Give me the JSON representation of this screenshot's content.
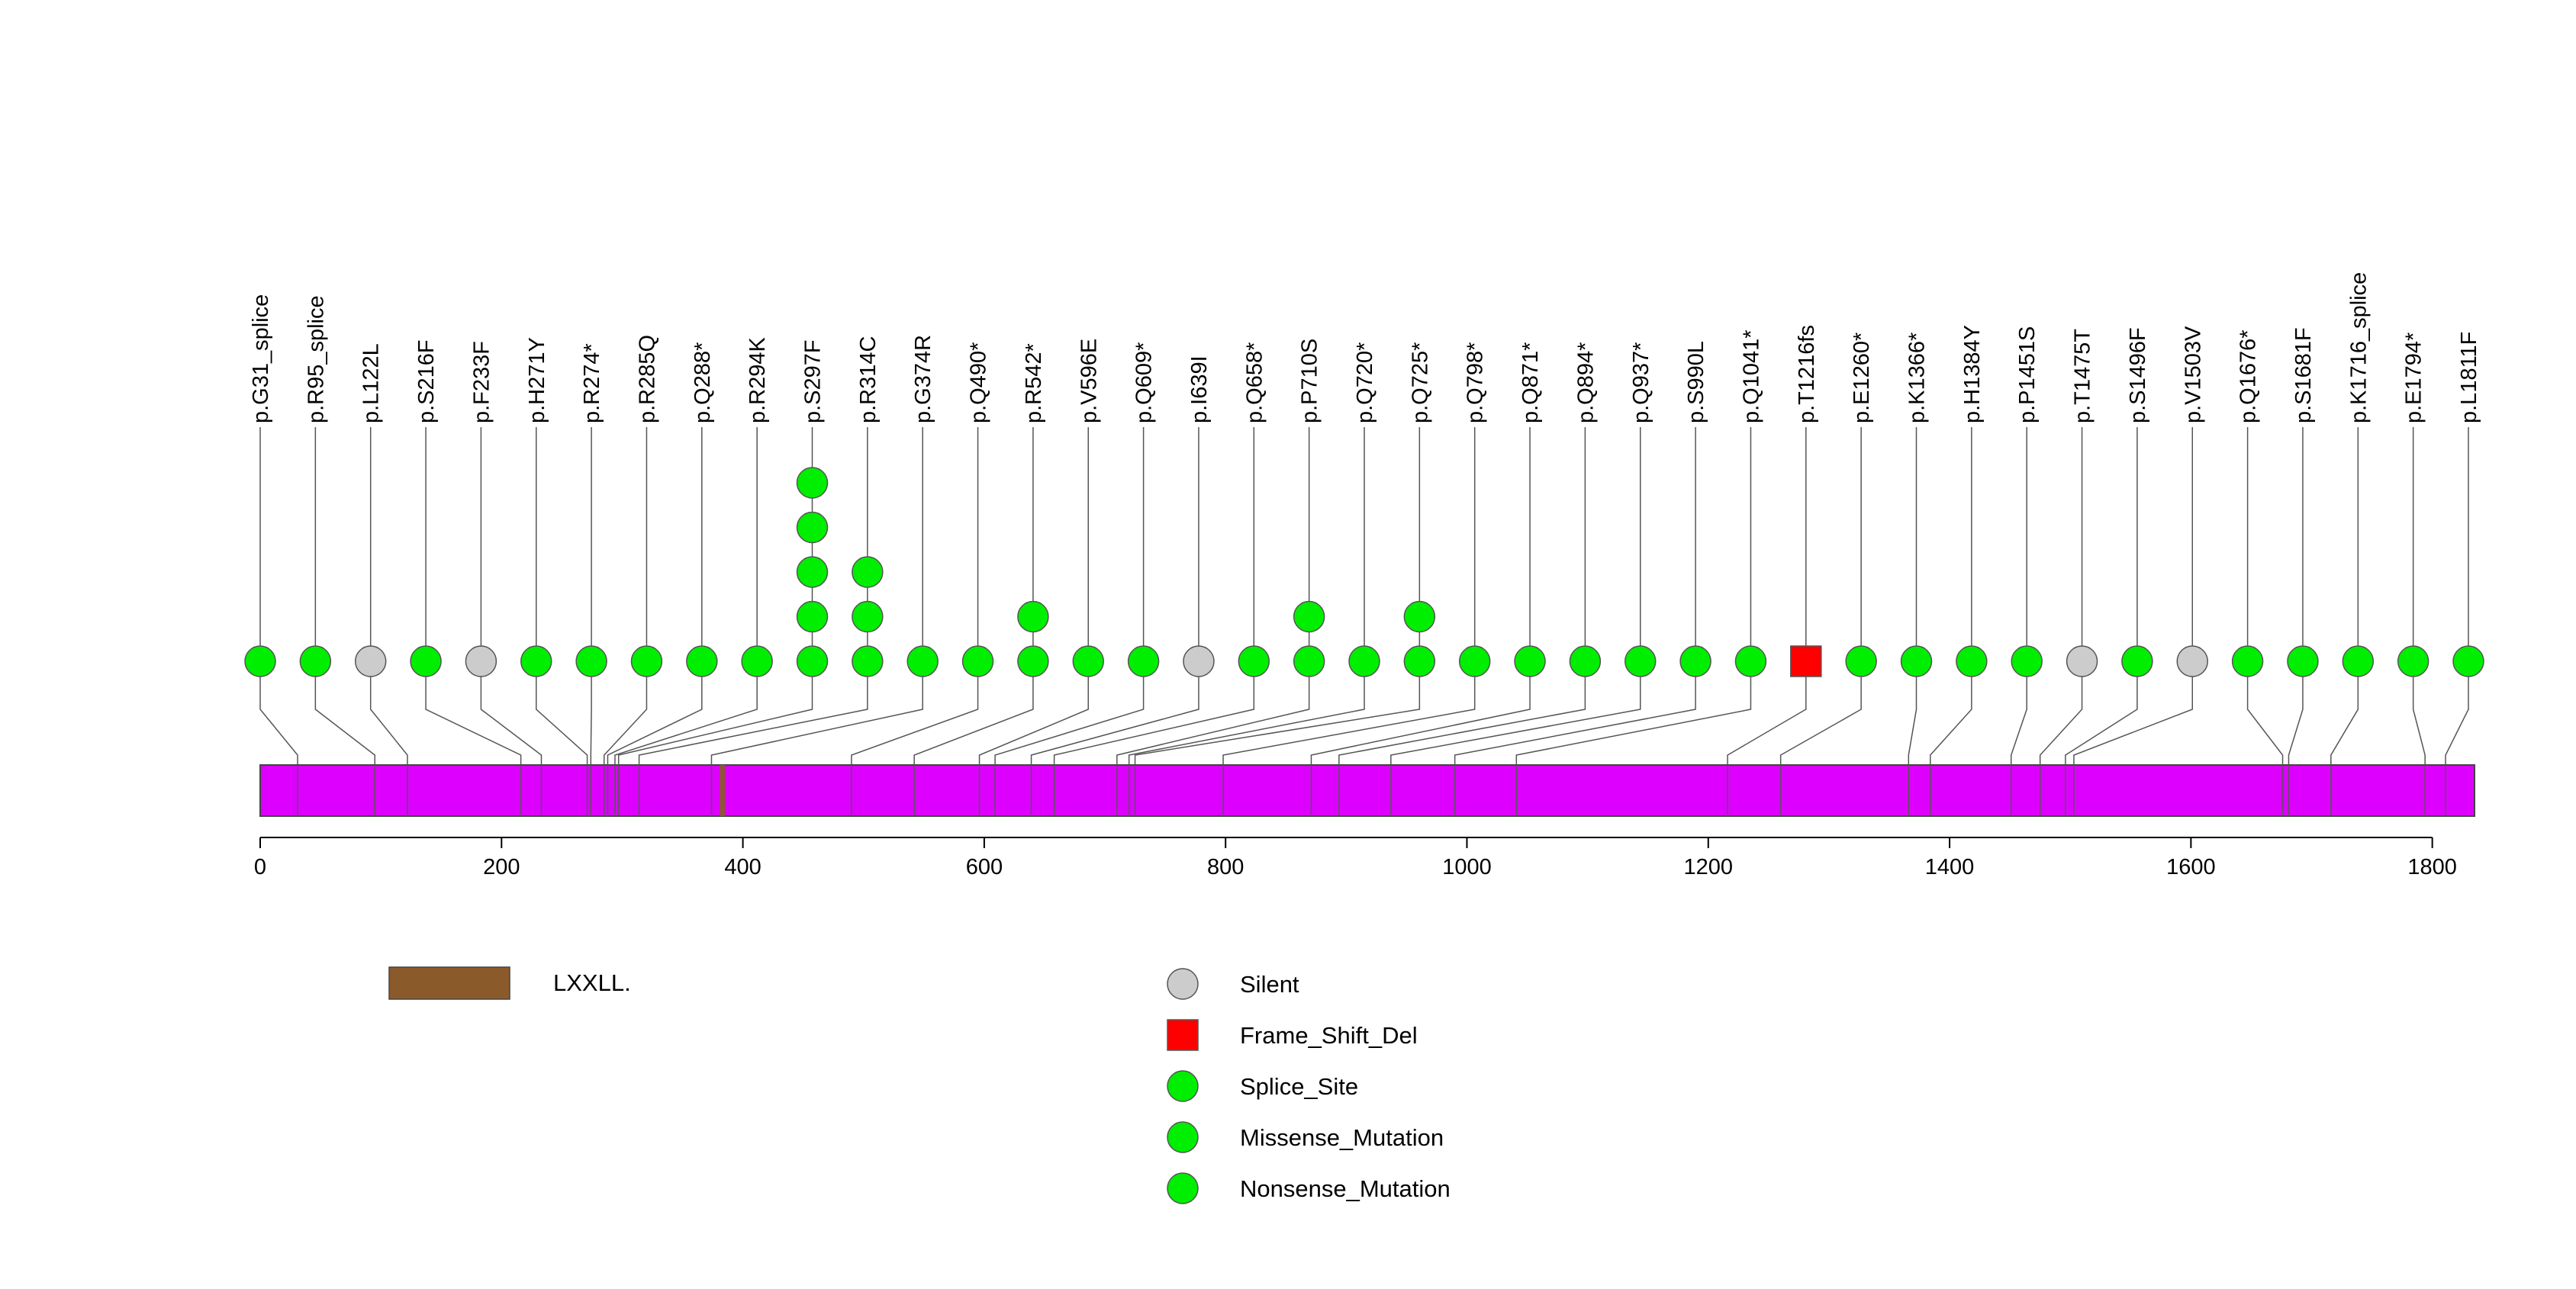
{
  "chart_data": {
    "type": "lollipop",
    "title": "",
    "xlabel": "",
    "ylabel": "",
    "protein_length": 1835,
    "xlim": [
      0,
      1835
    ],
    "x_ticks": [
      0,
      200,
      400,
      600,
      800,
      1000,
      1200,
      1400,
      1600,
      1800
    ],
    "domains": [
      {
        "name": "LXXLL.",
        "start": 381,
        "end": 385,
        "color": "#8B5A2B"
      }
    ],
    "protein_color": "#DD00FF",
    "mutation_types": [
      {
        "name": "Silent",
        "color": "#cccccc",
        "shape": "circle"
      },
      {
        "name": "Frame_Shift_Del",
        "color": "#ff0000",
        "shape": "square"
      },
      {
        "name": "Splice_Site",
        "color": "#00ee00",
        "shape": "circle"
      },
      {
        "name": "Missense_Mutation",
        "color": "#00ee00",
        "shape": "circle"
      },
      {
        "name": "Nonsense_Mutation",
        "color": "#00ee00",
        "shape": "circle"
      }
    ],
    "mutations": [
      {
        "label": "p.G31_splice",
        "position": 31,
        "count": 1,
        "type": "Splice_Site"
      },
      {
        "label": "p.R95_splice",
        "position": 95,
        "count": 1,
        "type": "Splice_Site"
      },
      {
        "label": "p.L122L",
        "position": 122,
        "count": 1,
        "type": "Silent"
      },
      {
        "label": "p.S216F",
        "position": 216,
        "count": 1,
        "type": "Missense_Mutation"
      },
      {
        "label": "p.F233F",
        "position": 233,
        "count": 1,
        "type": "Silent"
      },
      {
        "label": "p.H271Y",
        "position": 271,
        "count": 1,
        "type": "Missense_Mutation"
      },
      {
        "label": "p.R274*",
        "position": 274,
        "count": 1,
        "type": "Nonsense_Mutation"
      },
      {
        "label": "p.R285Q",
        "position": 285,
        "count": 1,
        "type": "Missense_Mutation"
      },
      {
        "label": "p.Q288*",
        "position": 288,
        "count": 1,
        "type": "Nonsense_Mutation"
      },
      {
        "label": "p.R294K",
        "position": 294,
        "count": 1,
        "type": "Missense_Mutation"
      },
      {
        "label": "p.S297F",
        "position": 297,
        "count": 5,
        "type": "Missense_Mutation"
      },
      {
        "label": "p.R314C",
        "position": 314,
        "count": 3,
        "type": "Missense_Mutation"
      },
      {
        "label": "p.G374R",
        "position": 374,
        "count": 1,
        "type": "Missense_Mutation"
      },
      {
        "label": "p.Q490*",
        "position": 490,
        "count": 1,
        "type": "Nonsense_Mutation"
      },
      {
        "label": "p.R542*",
        "position": 542,
        "count": 2,
        "type": "Nonsense_Mutation"
      },
      {
        "label": "p.V596E",
        "position": 596,
        "count": 1,
        "type": "Missense_Mutation"
      },
      {
        "label": "p.Q609*",
        "position": 609,
        "count": 1,
        "type": "Nonsense_Mutation"
      },
      {
        "label": "p.I639I",
        "position": 639,
        "count": 1,
        "type": "Silent"
      },
      {
        "label": "p.Q658*",
        "position": 658,
        "count": 1,
        "type": "Nonsense_Mutation"
      },
      {
        "label": "p.P710S",
        "position": 710,
        "count": 2,
        "type": "Missense_Mutation"
      },
      {
        "label": "p.Q720*",
        "position": 720,
        "count": 1,
        "type": "Nonsense_Mutation"
      },
      {
        "label": "p.Q725*",
        "position": 725,
        "count": 2,
        "type": "Nonsense_Mutation"
      },
      {
        "label": "p.Q798*",
        "position": 798,
        "count": 1,
        "type": "Nonsense_Mutation"
      },
      {
        "label": "p.Q871*",
        "position": 871,
        "count": 1,
        "type": "Nonsense_Mutation"
      },
      {
        "label": "p.Q894*",
        "position": 894,
        "count": 1,
        "type": "Nonsense_Mutation"
      },
      {
        "label": "p.Q937*",
        "position": 937,
        "count": 1,
        "type": "Nonsense_Mutation"
      },
      {
        "label": "p.S990L",
        "position": 990,
        "count": 1,
        "type": "Missense_Mutation"
      },
      {
        "label": "p.Q1041*",
        "position": 1041,
        "count": 1,
        "type": "Nonsense_Mutation"
      },
      {
        "label": "p.T1216fs",
        "position": 1216,
        "count": 1,
        "type": "Frame_Shift_Del"
      },
      {
        "label": "p.E1260*",
        "position": 1260,
        "count": 1,
        "type": "Nonsense_Mutation"
      },
      {
        "label": "p.K1366*",
        "position": 1366,
        "count": 1,
        "type": "Nonsense_Mutation"
      },
      {
        "label": "p.H1384Y",
        "position": 1384,
        "count": 1,
        "type": "Missense_Mutation"
      },
      {
        "label": "p.P1451S",
        "position": 1451,
        "count": 1,
        "type": "Missense_Mutation"
      },
      {
        "label": "p.T1475T",
        "position": 1475,
        "count": 1,
        "type": "Silent"
      },
      {
        "label": "p.S1496F",
        "position": 1496,
        "count": 1,
        "type": "Missense_Mutation"
      },
      {
        "label": "p.V1503V",
        "position": 1503,
        "count": 1,
        "type": "Silent"
      },
      {
        "label": "p.Q1676*",
        "position": 1676,
        "count": 1,
        "type": "Nonsense_Mutation"
      },
      {
        "label": "p.S1681F",
        "position": 1681,
        "count": 1,
        "type": "Missense_Mutation"
      },
      {
        "label": "p.K1716_splice",
        "position": 1716,
        "count": 1,
        "type": "Splice_Site"
      },
      {
        "label": "p.E1794*",
        "position": 1794,
        "count": 1,
        "type": "Nonsense_Mutation"
      },
      {
        "label": "p.L1811F",
        "position": 1811,
        "count": 1,
        "type": "Missense_Mutation"
      }
    ]
  }
}
